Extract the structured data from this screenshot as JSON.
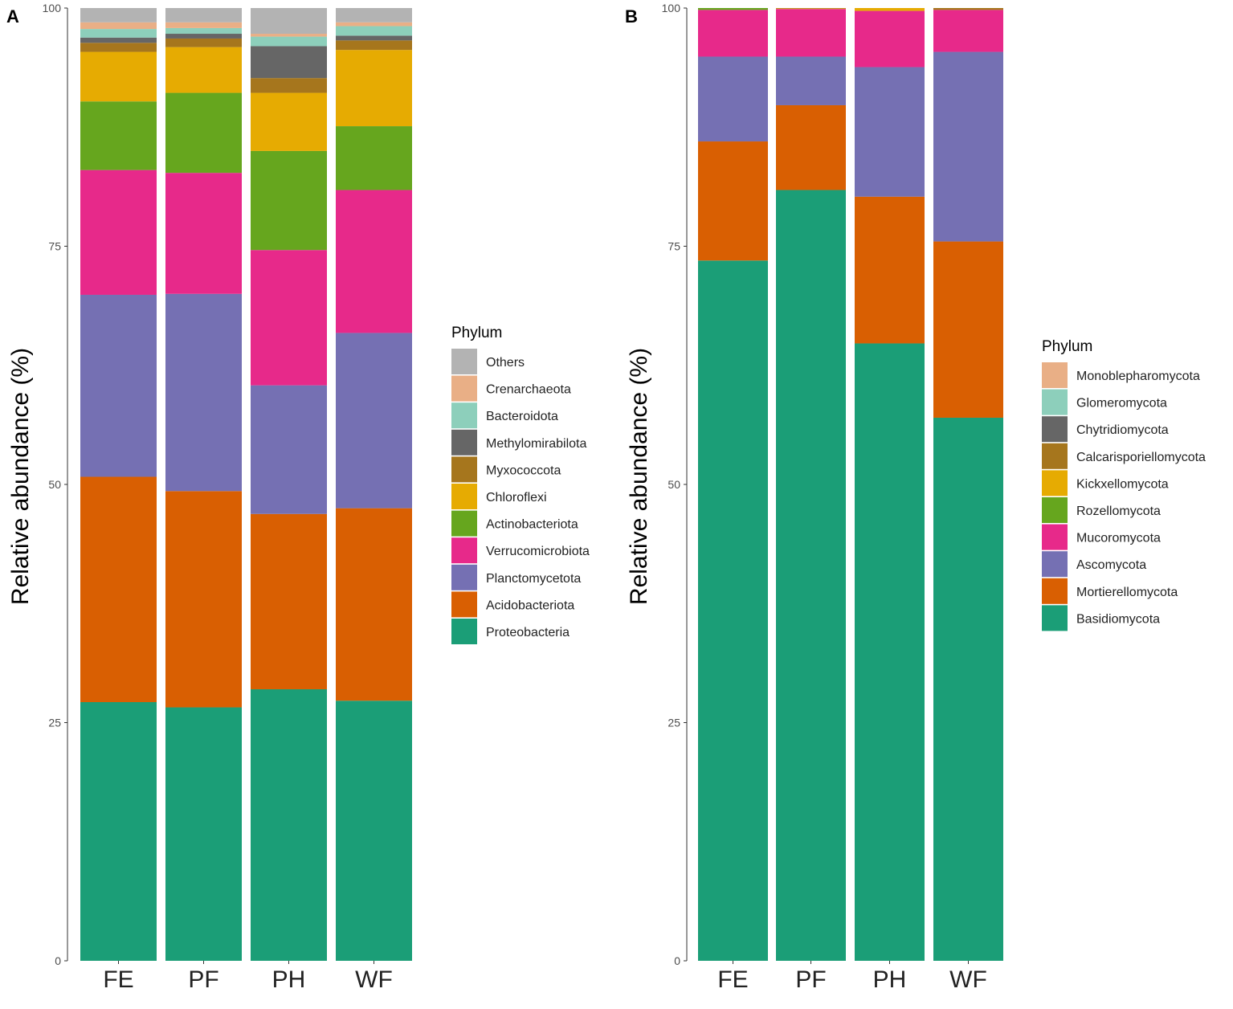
{
  "chart_data": [
    {
      "type": "bar",
      "stacked": true,
      "panel_label": "A",
      "categories": [
        "FE",
        "PF",
        "PH",
        "WF"
      ],
      "ylabel": "Relative abundance (%)",
      "ylim": [
        0,
        100
      ],
      "yticks": [
        0,
        25,
        50,
        75,
        100
      ],
      "legend_title": "Phylum",
      "legend_position": "right",
      "series": [
        {
          "name": "Proteobacteria",
          "color": "#1B9E77",
          "values": [
            27.15,
            26.6,
            28.5,
            27.3
          ]
        },
        {
          "name": "Acidobacteriota",
          "color": "#D95F02",
          "values": [
            23.65,
            22.7,
            18.4,
            20.2
          ]
        },
        {
          "name": "Planctomycetota",
          "color": "#7570B3",
          "values": [
            19.1,
            20.7,
            13.5,
            18.4
          ]
        },
        {
          "name": "Verrucomicrobiota",
          "color": "#E7298A",
          "values": [
            13.1,
            12.7,
            14.2,
            15.0
          ]
        },
        {
          "name": "Actinobacteriota",
          "color": "#66A61E",
          "values": [
            7.2,
            8.4,
            10.4,
            6.7
          ]
        },
        {
          "name": "Chloroflexi",
          "color": "#E6AB02",
          "values": [
            5.2,
            4.8,
            6.1,
            8.0
          ]
        },
        {
          "name": "Myxococcota",
          "color": "#A6761D",
          "values": [
            0.95,
            0.9,
            1.55,
            1.0
          ]
        },
        {
          "name": "Methylomirabilota",
          "color": "#666666",
          "values": [
            0.55,
            0.5,
            3.35,
            0.5
          ]
        },
        {
          "name": "Bacteroidota",
          "color": "#8DCFBB",
          "values": [
            0.9,
            0.6,
            1.0,
            1.0
          ]
        },
        {
          "name": "Crenarchaeota",
          "color": "#E9AF86",
          "values": [
            0.7,
            0.6,
            0.3,
            0.4
          ]
        },
        {
          "name": "Others",
          "color": "#B3B3B3",
          "values": [
            1.5,
            1.5,
            2.7,
            1.5
          ]
        }
      ]
    },
    {
      "type": "bar",
      "stacked": true,
      "panel_label": "B",
      "categories": [
        "FE",
        "PF",
        "PH",
        "WF"
      ],
      "ylabel": "Relative abundance (%)",
      "ylim": [
        0,
        100
      ],
      "yticks": [
        0,
        25,
        50,
        75,
        100
      ],
      "legend_title": "Phylum",
      "legend_position": "right",
      "series": [
        {
          "name": "Basidiomycota",
          "color": "#1B9E77",
          "values": [
            73.5,
            80.9,
            64.8,
            57.0
          ]
        },
        {
          "name": "Mortierellomycota",
          "color": "#D95F02",
          "values": [
            12.5,
            8.9,
            15.4,
            18.5
          ]
        },
        {
          "name": "Ascomycota",
          "color": "#7570B3",
          "values": [
            8.9,
            5.1,
            13.6,
            19.9
          ]
        },
        {
          "name": "Mucoromycota",
          "color": "#E7298A",
          "values": [
            4.9,
            5.0,
            5.9,
            4.4
          ]
        },
        {
          "name": "Rozellomycota",
          "color": "#66A61E",
          "values": [
            0.2,
            0.0,
            0.0,
            0.0
          ]
        },
        {
          "name": "Kickxellomycota",
          "color": "#E6AB02",
          "values": [
            0.0,
            0.05,
            0.3,
            0.0
          ]
        },
        {
          "name": "Calcarisporiellomycota",
          "color": "#A6761D",
          "values": [
            0.0,
            0.05,
            0.0,
            0.2
          ]
        },
        {
          "name": "Chytridiomycota",
          "color": "#666666",
          "values": [
            0,
            0,
            0,
            0
          ]
        },
        {
          "name": "Glomeromycota",
          "color": "#8DCFBB",
          "values": [
            0,
            0,
            0,
            0
          ]
        },
        {
          "name": "Monoblepharomycota",
          "color": "#E9AF86",
          "values": [
            0,
            0,
            0,
            0
          ]
        }
      ]
    }
  ]
}
